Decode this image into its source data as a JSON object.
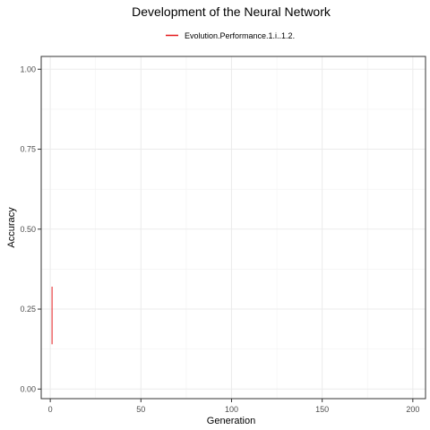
{
  "chart_data": {
    "type": "line",
    "title": "Development of the Neural Network",
    "xlabel": "Generation",
    "ylabel": "Accuracy",
    "xlim": [
      -5,
      207
    ],
    "ylim": [
      -0.03,
      1.04
    ],
    "x_ticks": [
      0,
      50,
      100,
      150,
      200
    ],
    "x_tick_labels": [
      "0",
      "50",
      "100",
      "150",
      "200"
    ],
    "y_ticks": [
      0,
      0.25,
      0.5,
      0.75,
      1.0
    ],
    "y_tick_labels": [
      "0.00",
      "0.25",
      "0.50",
      "0.75",
      "1.00"
    ],
    "grid": true,
    "legend_position": "top",
    "series": [
      {
        "name": "Evolution.Performance.1.i..1.2.",
        "color": "#e41a1c",
        "x": [
          1,
          1
        ],
        "y": [
          0.14,
          0.32
        ]
      }
    ]
  }
}
